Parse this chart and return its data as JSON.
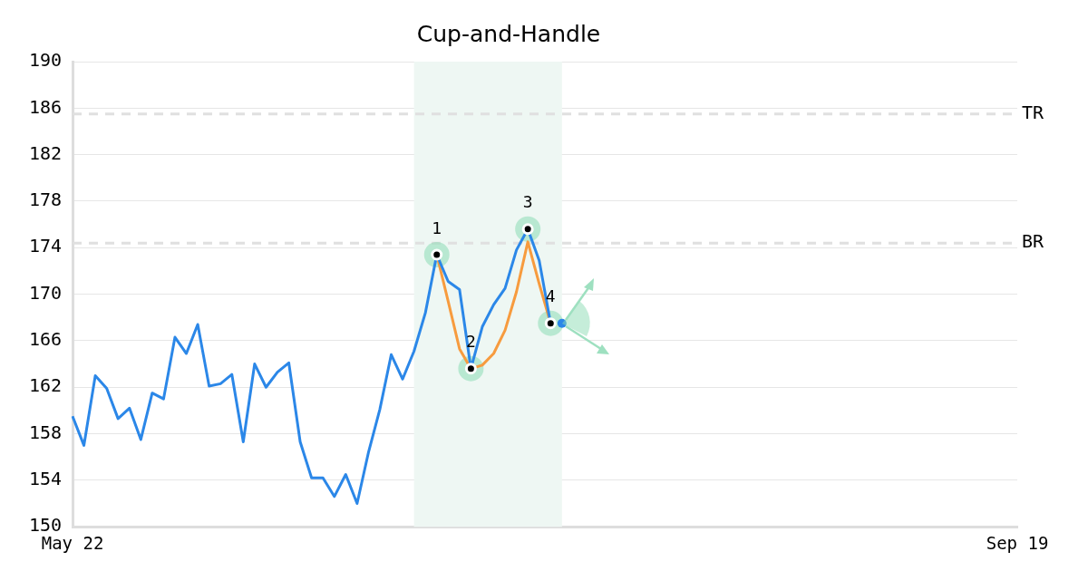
{
  "chart_data": {
    "type": "line",
    "title": "Cup-and-Handle",
    "categories": [
      "May 22",
      null,
      null,
      null,
      null,
      null,
      null,
      null,
      null,
      null,
      null,
      null,
      null,
      null,
      null,
      null,
      null,
      null,
      null,
      null,
      null,
      null,
      null,
      null,
      null,
      null,
      null,
      null,
      null,
      null,
      null,
      null,
      null,
      null,
      null,
      null,
      null,
      null,
      null,
      null,
      null,
      null,
      null,
      null,
      null,
      null,
      null,
      null,
      null,
      null,
      null,
      null,
      null,
      null,
      null,
      null,
      null,
      null,
      null,
      null,
      null,
      null,
      null,
      null,
      null,
      null,
      null,
      null,
      null,
      null,
      null,
      null,
      null,
      null,
      null,
      null,
      null,
      null,
      null,
      null,
      null,
      null,
      null,
      "Sep 19"
    ],
    "series": [
      {
        "color": "#2b87e8",
        "values": [
          159.5,
          157.0,
          163.0,
          161.9,
          159.3,
          160.2,
          157.5,
          161.5,
          161.0,
          166.3,
          164.9,
          167.4,
          162.1,
          162.3,
          163.1,
          157.3,
          164.0,
          162.0,
          163.3,
          164.1,
          157.3,
          154.2,
          154.2,
          152.6,
          154.5,
          152.0,
          156.4,
          160.1,
          164.8,
          162.7,
          165.1,
          168.4,
          173.4,
          171.1,
          170.4,
          163.6,
          167.2,
          169.1,
          170.5,
          173.8,
          175.6,
          172.9,
          167.5,
          null,
          null,
          null,
          null,
          null,
          null,
          null,
          null,
          null,
          null,
          null,
          null,
          null,
          null,
          null,
          null,
          null,
          null,
          null,
          null,
          null,
          null,
          null,
          null,
          null,
          null,
          null,
          null,
          null,
          null,
          null,
          null,
          null,
          null,
          null,
          null,
          null,
          null,
          null,
          null,
          null
        ]
      },
      {
        "type": "line",
        "color": "#f79b3e",
        "values": [
          null,
          null,
          null,
          null,
          null,
          null,
          null,
          null,
          null,
          null,
          null,
          null,
          null,
          null,
          null,
          null,
          null,
          null,
          null,
          null,
          null,
          null,
          null,
          null,
          null,
          null,
          null,
          null,
          null,
          null,
          null,
          null,
          173.4,
          169.4,
          165.3,
          163.6,
          163.9,
          164.9,
          166.9,
          170.2,
          174.5,
          170.9,
          167.5,
          null,
          null,
          null,
          null,
          null,
          null,
          null,
          null,
          null,
          null,
          null,
          null,
          null,
          null,
          null,
          null,
          null,
          null,
          null,
          null,
          null,
          null,
          null,
          null,
          null,
          null,
          null,
          null,
          null,
          null,
          null,
          null,
          null,
          null,
          null,
          null,
          null,
          null,
          null,
          null,
          null
        ]
      },
      {
        "type": "scatter",
        "marker": "circle",
        "color": "#000000",
        "values": [
          null,
          null,
          null,
          null,
          null,
          null,
          null,
          null,
          null,
          null,
          null,
          null,
          null,
          null,
          null,
          null,
          null,
          null,
          null,
          null,
          null,
          null,
          null,
          null,
          null,
          null,
          null,
          null,
          null,
          null,
          null,
          null,
          173.4,
          null,
          null,
          163.6,
          null,
          null,
          null,
          null,
          175.6,
          null,
          167.5,
          null,
          null,
          null,
          null,
          null,
          null,
          null,
          null,
          null,
          null,
          null,
          null,
          null,
          null,
          null,
          null,
          null,
          null,
          null,
          null,
          null,
          null,
          null,
          null,
          null,
          null,
          null,
          null,
          null,
          null,
          null,
          null,
          null,
          null,
          null,
          null,
          null,
          null,
          null,
          null,
          null
        ]
      },
      {
        "type": "scatter",
        "marker": "circle",
        "color": "#2b87e8",
        "values": [
          null,
          null,
          null,
          null,
          null,
          null,
          null,
          null,
          null,
          null,
          null,
          null,
          null,
          null,
          null,
          null,
          null,
          null,
          null,
          null,
          null,
          null,
          null,
          null,
          null,
          null,
          null,
          null,
          null,
          null,
          null,
          null,
          null,
          null,
          null,
          null,
          null,
          null,
          null,
          null,
          null,
          null,
          null,
          167.5,
          null,
          null,
          null,
          null,
          null,
          null,
          null,
          null,
          null,
          null,
          null,
          null,
          null,
          null,
          null,
          null,
          null,
          null,
          null,
          null,
          null,
          null,
          null,
          null,
          null,
          null,
          null,
          null,
          null,
          null,
          null,
          null,
          null,
          null,
          null,
          null,
          null,
          null,
          null,
          null
        ]
      }
    ],
    "annotations": [
      {
        "text": "1",
        "y": 173.4
      },
      {
        "text": "2",
        "y": 163.6
      },
      {
        "text": "3",
        "y": 175.6
      },
      {
        "text": "4",
        "y": 167.5
      }
    ],
    "ylim": [
      150,
      190
    ],
    "yticks": [
      150,
      154,
      158,
      162,
      166,
      170,
      174,
      178,
      182,
      186,
      190
    ],
    "grid": "y",
    "legend": false,
    "ref_lines": [
      {
        "axis": "y",
        "value": 185.5,
        "label": "TR",
        "color": "#e0e0e0",
        "line_style": "dashed"
      },
      {
        "axis": "y",
        "value": 174.4,
        "label": "BR",
        "color": "#e0e0e0",
        "line_style": "dashed"
      }
    ]
  }
}
